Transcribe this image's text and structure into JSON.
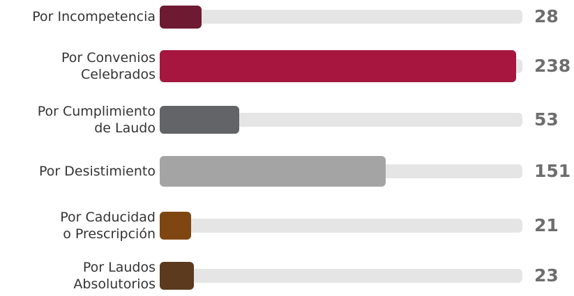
{
  "chart_data": {
    "type": "bar",
    "orientation": "horizontal",
    "categories": [
      "Por  Incompetencia",
      "Por Convenios\nCelebrados",
      "Por Cumplimiento\nde Laudo",
      "Por  Desistimiento",
      "Por Caducidad\no Prescripción",
      "Por Laudos\nAbsolutorios"
    ],
    "values": [
      28,
      238,
      53,
      151,
      21,
      23
    ],
    "value_labels": [
      "28",
      "238",
      "53",
      "151",
      "21",
      "23"
    ],
    "colors": [
      "#6d1a32",
      "#a6163f",
      "#636467",
      "#a4a4a4",
      "#7f4611",
      "#5b3a1d"
    ],
    "track_color": "#e5e5e5",
    "xlim": [
      0,
      238
    ],
    "title": "",
    "xlabel": "",
    "ylabel": "",
    "grid": false,
    "legend": "none"
  }
}
